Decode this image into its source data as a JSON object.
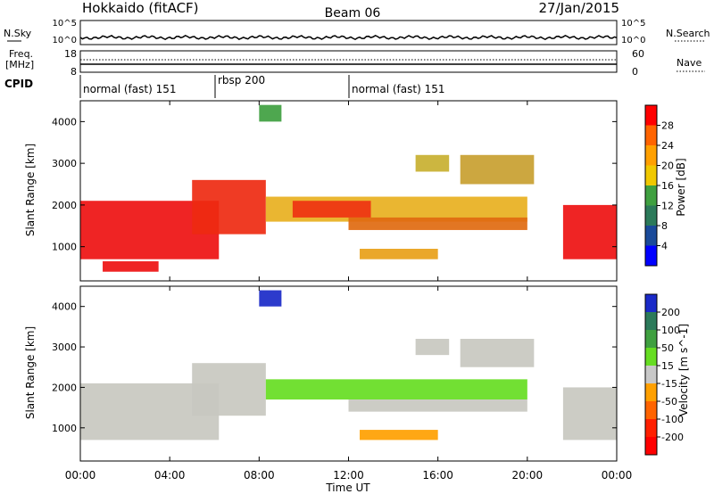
{
  "header": {
    "title": "Hokkaido (fitACF)",
    "beam": "Beam 06",
    "date": "27/Jan/2015"
  },
  "noise_panel": {
    "left_label": "N.Sky",
    "right_label": "N.Search",
    "left_ticks": [
      "10^5",
      "10^0"
    ],
    "right_ticks": [
      "10^5",
      "10^0"
    ]
  },
  "freq_panel": {
    "left_label_1": "Freq.",
    "left_label_2": "[MHz]",
    "right_label": "Nave",
    "left_ticks": [
      "18",
      "8"
    ],
    "right_ticks": [
      "60",
      "0"
    ]
  },
  "cpid": {
    "label": "CPID",
    "segments": [
      {
        "start": 0,
        "end": 6.0,
        "text": "normal (fast) 151"
      },
      {
        "start": 6.0,
        "end": 12.0,
        "text": "rbsp 200"
      },
      {
        "start": 12.0,
        "end": 24.0,
        "text": "normal (fast) 151"
      }
    ]
  },
  "x_axis": {
    "label": "Time UT",
    "ticks": [
      "00:00",
      "04:00",
      "08:00",
      "12:00",
      "16:00",
      "20:00",
      "00:00"
    ]
  },
  "chart_data": [
    {
      "type": "heatmap",
      "title": "",
      "variable": "Power",
      "xlabel": "Time UT",
      "ylabel": "Slant Range [km]",
      "xlim": [
        0,
        24
      ],
      "ylim": [
        180,
        4500
      ],
      "y_ticks": [
        "1000",
        "2000",
        "3000",
        "4000"
      ],
      "colorbar": {
        "label": "Power [dB]",
        "labels": [
          "28",
          "24",
          "20",
          "16",
          "12",
          "8",
          "4"
        ],
        "colors": [
          "#ff0000",
          "#ff6400",
          "#ffa000",
          "#f0c800",
          "#3fa040",
          "#2c7a5a",
          "#1a4a9a",
          "#0000ff"
        ]
      },
      "regions": [
        {
          "t0": 0.0,
          "t1": 6.2,
          "r0": 700,
          "r1": 2100,
          "color": "#ee1111"
        },
        {
          "t0": 1.0,
          "t1": 3.5,
          "r0": 400,
          "r1": 650,
          "color": "#ee1111"
        },
        {
          "t0": 5.0,
          "t1": 8.3,
          "r0": 1300,
          "r1": 2600,
          "color": "#ee2a11"
        },
        {
          "t0": 8.3,
          "t1": 20.0,
          "r0": 1600,
          "r1": 2200,
          "color": "#e8b020"
        },
        {
          "t0": 9.5,
          "t1": 13.0,
          "r0": 1700,
          "r1": 2100,
          "color": "#ee3311"
        },
        {
          "t0": 12.0,
          "t1": 20.0,
          "r0": 1400,
          "r1": 1700,
          "color": "#e06a10"
        },
        {
          "t0": 12.5,
          "t1": 16.0,
          "r0": 700,
          "r1": 950,
          "color": "#e8a018"
        },
        {
          "t0": 15.0,
          "t1": 16.5,
          "r0": 2800,
          "r1": 3200,
          "color": "#c8b030"
        },
        {
          "t0": 17.0,
          "t1": 20.3,
          "r0": 2500,
          "r1": 3200,
          "color": "#c8a030"
        },
        {
          "t0": 21.6,
          "t1": 24.0,
          "r0": 700,
          "r1": 2000,
          "color": "#ee1111"
        },
        {
          "t0": 8.0,
          "t1": 9.0,
          "r0": 4000,
          "r1": 4400,
          "color": "#3fa040"
        }
      ]
    },
    {
      "type": "heatmap",
      "title": "",
      "variable": "Velocity",
      "xlabel": "Time UT",
      "ylabel": "Slant Range [km]",
      "xlim": [
        0,
        24
      ],
      "ylim": [
        180,
        4500
      ],
      "y_ticks": [
        "1000",
        "2000",
        "3000",
        "4000"
      ],
      "colorbar": {
        "label": "Velocity [m s^-1]",
        "labels": [
          "200",
          "100",
          "50",
          "15",
          "-15",
          "-50",
          "-100",
          "-200"
        ],
        "colors": [
          "#1a2ac8",
          "#2c7a5a",
          "#3fa040",
          "#66dd22",
          "#c8c8c8",
          "#ffa000",
          "#ff6400",
          "#ff2000",
          "#ff0000"
        ]
      },
      "regions": [
        {
          "t0": 0.0,
          "t1": 6.2,
          "r0": 700,
          "r1": 2100,
          "color": "#c8c8c0"
        },
        {
          "t0": 5.0,
          "t1": 8.3,
          "r0": 1300,
          "r1": 2600,
          "color": "#c8c8c0"
        },
        {
          "t0": 8.3,
          "t1": 20.0,
          "r0": 1700,
          "r1": 2200,
          "color": "#66dd22"
        },
        {
          "t0": 12.0,
          "t1": 20.0,
          "r0": 1400,
          "r1": 1700,
          "color": "#c8c8c0"
        },
        {
          "t0": 12.5,
          "t1": 16.0,
          "r0": 700,
          "r1": 950,
          "color": "#ffa000"
        },
        {
          "t0": 15.0,
          "t1": 16.5,
          "r0": 2800,
          "r1": 3200,
          "color": "#c8c8c0"
        },
        {
          "t0": 17.0,
          "t1": 20.3,
          "r0": 2500,
          "r1": 3200,
          "color": "#c8c8c0"
        },
        {
          "t0": 21.6,
          "t1": 24.0,
          "r0": 700,
          "r1": 2000,
          "color": "#c8c8c0"
        },
        {
          "t0": 8.0,
          "t1": 9.0,
          "r0": 4000,
          "r1": 4400,
          "color": "#1a2ac8"
        }
      ]
    }
  ]
}
